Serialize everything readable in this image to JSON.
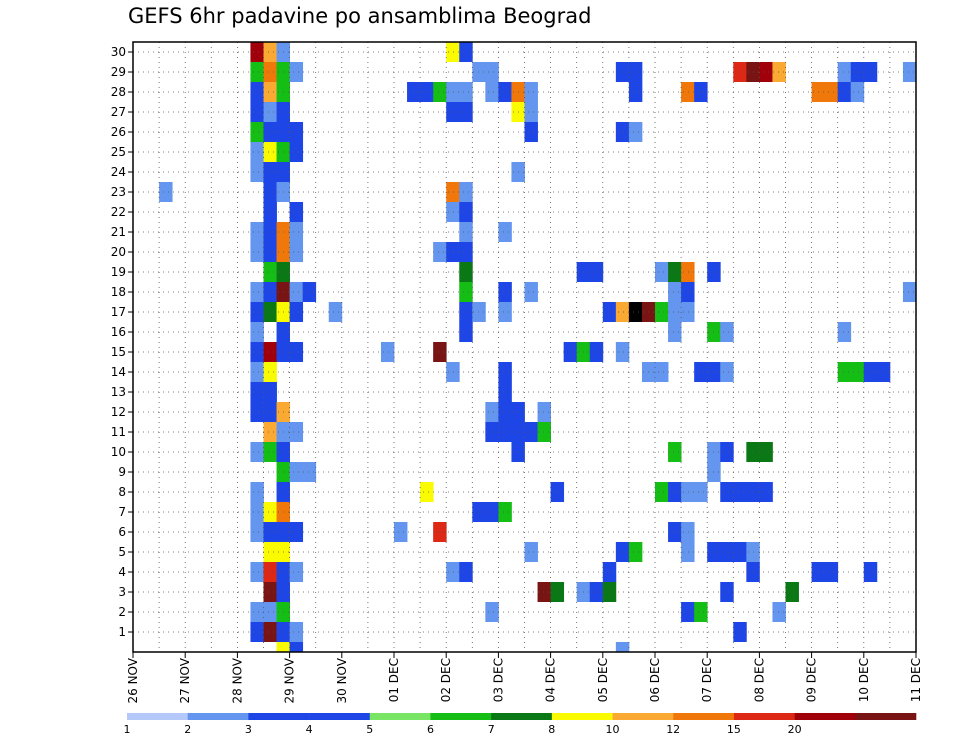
{
  "title": "GEFS 6hr padavine po ansamblima Beograd",
  "chart_data": {
    "type": "heatmap",
    "title": "GEFS 6hr padavine po ansamblima Beograd",
    "y_labels": [
      "1",
      "2",
      "3",
      "4",
      "5",
      "6",
      "7",
      "8",
      "9",
      "10",
      "11",
      "12",
      "13",
      "14",
      "15",
      "16",
      "17",
      "18",
      "19",
      "20",
      "21",
      "22",
      "23",
      "24",
      "25",
      "26",
      "27",
      "28",
      "29",
      "30"
    ],
    "x_labels": [
      "26 NOV",
      "27 NOV",
      "28 NOV",
      "29 NOV",
      "30 NOV",
      "01 DEC",
      "02 DEC",
      "03 DEC",
      "04 DEC",
      "05 DEC",
      "06 DEC",
      "07 DEC",
      "08 DEC",
      "09 DEC",
      "10 DEC",
      "11 DEC"
    ],
    "levels": [
      "1",
      "2",
      "3",
      "4",
      "5",
      "6",
      "7",
      "8",
      "10",
      "12",
      "15",
      "20"
    ],
    "colors": [
      "#b4c8fa",
      "#6496f0",
      "#1e46e6",
      "#1e46e6",
      "#78e664",
      "#14be14",
      "#0a7814",
      "#fafa00",
      "#faaa32",
      "#f0780a",
      "#dc2814",
      "#a0000a",
      "#781414"
    ],
    "grid": "dotted",
    "cells": [
      [
        30,
        9,
        11
      ],
      [
        30,
        10,
        8
      ],
      [
        30,
        11,
        1
      ],
      [
        30,
        24,
        7
      ],
      [
        30,
        25,
        2
      ],
      [
        29,
        9,
        5
      ],
      [
        29,
        10,
        9
      ],
      [
        29,
        11,
        5
      ],
      [
        29,
        12,
        1
      ],
      [
        29,
        26,
        1
      ],
      [
        29,
        27,
        1
      ],
      [
        29,
        37,
        2
      ],
      [
        29,
        38,
        2
      ],
      [
        29,
        46,
        10
      ],
      [
        29,
        47,
        12
      ],
      [
        29,
        48,
        11
      ],
      [
        29,
        49,
        8
      ],
      [
        29,
        54,
        1
      ],
      [
        29,
        55,
        3
      ],
      [
        29,
        56,
        3
      ],
      [
        29,
        59,
        1
      ],
      [
        28,
        9,
        2
      ],
      [
        28,
        10,
        8
      ],
      [
        28,
        11,
        5
      ],
      [
        28,
        21,
        2
      ],
      [
        28,
        22,
        3
      ],
      [
        28,
        23,
        5
      ],
      [
        28,
        24,
        1
      ],
      [
        28,
        25,
        1
      ],
      [
        28,
        27,
        1
      ],
      [
        28,
        28,
        2
      ],
      [
        28,
        29,
        9
      ],
      [
        28,
        30,
        1
      ],
      [
        28,
        38,
        2
      ],
      [
        28,
        42,
        9
      ],
      [
        28,
        43,
        3
      ],
      [
        28,
        52,
        9
      ],
      [
        28,
        53,
        9
      ],
      [
        28,
        54,
        2
      ],
      [
        28,
        55,
        1
      ],
      [
        27,
        9,
        2
      ],
      [
        27,
        10,
        1
      ],
      [
        27,
        11,
        3
      ],
      [
        27,
        24,
        2
      ],
      [
        27,
        25,
        2
      ],
      [
        27,
        29,
        7
      ],
      [
        27,
        30,
        1
      ],
      [
        26,
        9,
        5
      ],
      [
        26,
        10,
        2
      ],
      [
        26,
        11,
        3
      ],
      [
        26,
        12,
        3
      ],
      [
        26,
        30,
        2
      ],
      [
        26,
        37,
        2
      ],
      [
        26,
        38,
        1
      ],
      [
        25,
        9,
        1
      ],
      [
        25,
        10,
        7
      ],
      [
        25,
        11,
        5
      ],
      [
        25,
        12,
        3
      ],
      [
        24,
        9,
        1
      ],
      [
        24,
        10,
        2
      ],
      [
        24,
        11,
        2
      ],
      [
        24,
        29,
        1
      ],
      [
        23,
        2,
        1
      ],
      [
        23,
        10,
        3
      ],
      [
        23,
        11,
        1
      ],
      [
        23,
        24,
        9
      ],
      [
        23,
        25,
        1
      ],
      [
        22,
        10,
        2
      ],
      [
        22,
        12,
        2
      ],
      [
        22,
        24,
        1
      ],
      [
        22,
        25,
        2
      ],
      [
        21,
        9,
        1
      ],
      [
        21,
        10,
        3
      ],
      [
        21,
        11,
        9
      ],
      [
        21,
        12,
        1
      ],
      [
        21,
        25,
        1
      ],
      [
        21,
        28,
        1
      ],
      [
        20,
        9,
        1
      ],
      [
        20,
        10,
        2
      ],
      [
        20,
        11,
        9
      ],
      [
        20,
        12,
        1
      ],
      [
        20,
        23,
        1
      ],
      [
        20,
        24,
        2
      ],
      [
        20,
        25,
        3
      ],
      [
        19,
        10,
        5
      ],
      [
        19,
        11,
        6
      ],
      [
        19,
        25,
        6
      ],
      [
        19,
        34,
        2
      ],
      [
        19,
        35,
        2
      ],
      [
        19,
        40,
        1
      ],
      [
        19,
        41,
        6
      ],
      [
        19,
        42,
        9
      ],
      [
        19,
        44,
        2
      ],
      [
        18,
        9,
        1
      ],
      [
        18,
        10,
        2
      ],
      [
        18,
        11,
        12
      ],
      [
        18,
        12,
        1
      ],
      [
        18,
        13,
        2
      ],
      [
        18,
        25,
        5
      ],
      [
        18,
        28,
        3
      ],
      [
        18,
        30,
        1
      ],
      [
        18,
        41,
        1
      ],
      [
        18,
        42,
        2
      ],
      [
        18,
        59,
        1
      ],
      [
        17,
        9,
        2
      ],
      [
        17,
        10,
        6
      ],
      [
        17,
        11,
        7
      ],
      [
        17,
        12,
        3
      ],
      [
        17,
        15,
        1
      ],
      [
        17,
        25,
        2
      ],
      [
        17,
        26,
        1
      ],
      [
        17,
        28,
        1
      ],
      [
        17,
        36,
        2
      ],
      [
        17,
        37,
        8
      ],
      [
        17,
        38,
        13
      ],
      [
        17,
        39,
        12
      ],
      [
        17,
        40,
        5
      ],
      [
        17,
        41,
        1
      ],
      [
        17,
        42,
        1
      ],
      [
        16,
        9,
        1
      ],
      [
        16,
        11,
        3
      ],
      [
        16,
        25,
        2
      ],
      [
        16,
        41,
        1
      ],
      [
        16,
        44,
        5
      ],
      [
        16,
        45,
        1
      ],
      [
        16,
        54,
        1
      ],
      [
        15,
        9,
        2
      ],
      [
        15,
        10,
        11
      ],
      [
        15,
        11,
        2
      ],
      [
        15,
        12,
        3
      ],
      [
        15,
        19,
        1
      ],
      [
        15,
        23,
        12
      ],
      [
        15,
        33,
        2
      ],
      [
        15,
        34,
        5
      ],
      [
        15,
        35,
        3
      ],
      [
        15,
        37,
        1
      ],
      [
        14,
        9,
        1
      ],
      [
        14,
        10,
        7
      ],
      [
        14,
        24,
        1
      ],
      [
        14,
        28,
        2
      ],
      [
        14,
        39,
        1
      ],
      [
        14,
        40,
        1
      ],
      [
        14,
        43,
        2
      ],
      [
        14,
        44,
        2
      ],
      [
        14,
        45,
        1
      ],
      [
        14,
        54,
        5
      ],
      [
        14,
        55,
        5
      ],
      [
        14,
        56,
        2
      ],
      [
        14,
        57,
        3
      ],
      [
        13,
        9,
        2
      ],
      [
        13,
        10,
        2
      ],
      [
        13,
        28,
        2
      ],
      [
        12,
        9,
        2
      ],
      [
        12,
        10,
        2
      ],
      [
        12,
        11,
        8
      ],
      [
        12,
        27,
        1
      ],
      [
        12,
        28,
        2
      ],
      [
        12,
        29,
        2
      ],
      [
        12,
        31,
        1
      ],
      [
        11,
        10,
        8
      ],
      [
        11,
        11,
        1
      ],
      [
        11,
        12,
        1
      ],
      [
        11,
        27,
        3
      ],
      [
        11,
        28,
        3
      ],
      [
        11,
        29,
        3
      ],
      [
        11,
        30,
        3
      ],
      [
        11,
        31,
        5
      ],
      [
        10,
        9,
        1
      ],
      [
        10,
        10,
        5
      ],
      [
        10,
        11,
        2
      ],
      [
        10,
        29,
        3
      ],
      [
        10,
        41,
        5
      ],
      [
        10,
        44,
        1
      ],
      [
        10,
        45,
        3
      ],
      [
        10,
        47,
        6
      ],
      [
        10,
        48,
        6
      ],
      [
        9,
        11,
        5
      ],
      [
        9,
        12,
        1
      ],
      [
        9,
        13,
        1
      ],
      [
        9,
        44,
        1
      ],
      [
        8,
        9,
        1
      ],
      [
        8,
        11,
        2
      ],
      [
        8,
        22,
        7
      ],
      [
        8,
        32,
        2
      ],
      [
        8,
        40,
        5
      ],
      [
        8,
        41,
        2
      ],
      [
        8,
        42,
        1
      ],
      [
        8,
        43,
        1
      ],
      [
        8,
        45,
        2
      ],
      [
        8,
        46,
        2
      ],
      [
        8,
        47,
        3
      ],
      [
        8,
        48,
        2
      ],
      [
        7,
        9,
        1
      ],
      [
        7,
        10,
        7
      ],
      [
        7,
        11,
        9
      ],
      [
        7,
        26,
        2
      ],
      [
        7,
        27,
        2
      ],
      [
        7,
        28,
        5
      ],
      [
        6,
        9,
        1
      ],
      [
        6,
        10,
        3
      ],
      [
        6,
        11,
        3
      ],
      [
        6,
        12,
        3
      ],
      [
        6,
        20,
        1
      ],
      [
        6,
        23,
        10
      ],
      [
        6,
        41,
        3
      ],
      [
        6,
        42,
        1
      ],
      [
        5,
        10,
        7
      ],
      [
        5,
        11,
        7
      ],
      [
        5,
        30,
        1
      ],
      [
        5,
        37,
        2
      ],
      [
        5,
        38,
        5
      ],
      [
        5,
        42,
        1
      ],
      [
        5,
        44,
        2
      ],
      [
        5,
        45,
        3
      ],
      [
        5,
        46,
        2
      ],
      [
        5,
        47,
        1
      ],
      [
        4,
        9,
        1
      ],
      [
        4,
        10,
        10
      ],
      [
        4,
        11,
        3
      ],
      [
        4,
        12,
        1
      ],
      [
        4,
        24,
        1
      ],
      [
        4,
        25,
        2
      ],
      [
        4,
        36,
        2
      ],
      [
        4,
        47,
        2
      ],
      [
        4,
        52,
        2
      ],
      [
        4,
        53,
        2
      ],
      [
        4,
        56,
        2
      ],
      [
        3,
        10,
        12
      ],
      [
        3,
        11,
        3
      ],
      [
        3,
        31,
        12
      ],
      [
        3,
        32,
        6
      ],
      [
        3,
        34,
        1
      ],
      [
        3,
        35,
        2
      ],
      [
        3,
        36,
        6
      ],
      [
        3,
        45,
        2
      ],
      [
        3,
        50,
        6
      ],
      [
        2,
        9,
        1
      ],
      [
        2,
        10,
        1
      ],
      [
        2,
        11,
        5
      ],
      [
        2,
        27,
        1
      ],
      [
        2,
        42,
        3
      ],
      [
        2,
        43,
        5
      ],
      [
        2,
        49,
        1
      ],
      [
        1,
        9,
        2
      ],
      [
        1,
        10,
        12
      ],
      [
        1,
        11,
        3
      ],
      [
        1,
        12,
        1
      ],
      [
        1,
        46,
        2
      ],
      [
        0,
        11,
        7
      ],
      [
        0,
        12,
        2
      ],
      [
        0,
        37,
        1
      ]
    ]
  }
}
